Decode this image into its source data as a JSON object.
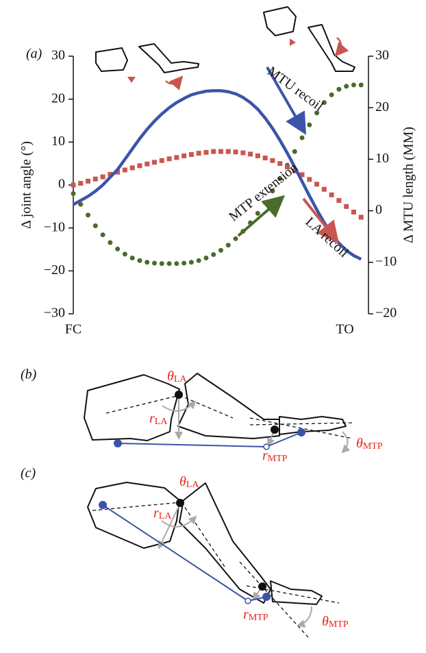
{
  "chart_data": {
    "type": "line",
    "panel": "(a)",
    "y_label": "Δ joint angle (°)",
    "y2_label": "Δ MTU length (MM)",
    "x": [
      0,
      2.5,
      5,
      7.5,
      10,
      12.5,
      15,
      17.5,
      20,
      22.5,
      25,
      27.5,
      30,
      32.5,
      35,
      37.5,
      40,
      42.5,
      45,
      47.5,
      50,
      52.5,
      55,
      57.5,
      60,
      62.5,
      65,
      67.5,
      70,
      72.5,
      75,
      77.5,
      80,
      82.5,
      85,
      87.5,
      90,
      92.5,
      95,
      97.5
    ],
    "xlim": [
      0,
      100
    ],
    "xticks": [
      {
        "value": 0,
        "label": "FC"
      },
      {
        "value": 92,
        "label": "TO"
      }
    ],
    "ylim": [
      -30,
      30
    ],
    "yticks": [
      {
        "value": -30,
        "label": "−30"
      },
      {
        "value": -20,
        "label": "−20"
      },
      {
        "value": -10,
        "label": "−10"
      },
      0,
      10,
      20,
      30
    ],
    "y2lim": [
      -20,
      30
    ],
    "y2ticks": [
      {
        "value": -20,
        "label": "−20"
      },
      {
        "value": -10,
        "label": "−10"
      },
      0,
      10,
      20,
      30
    ],
    "series": [
      {
        "style": "line",
        "axis": "y2",
        "color": "#3a55a8",
        "values": [
          1.2,
          2.0,
          2.8,
          3.8,
          5.0,
          6.5,
          8.0,
          10.0,
          12.0,
          14.0,
          15.8,
          17.4,
          18.8,
          20.0,
          21.0,
          21.8,
          22.5,
          22.9,
          23.2,
          23.3,
          23.3,
          23.1,
          22.7,
          22.0,
          21.0,
          19.7,
          18.0,
          16.0,
          13.7,
          11.2,
          8.5,
          5.7,
          2.9,
          0.2,
          -2.3,
          -4.5,
          -6.3,
          -7.7,
          -8.7,
          -9.4
        ]
      },
      {
        "style": "square",
        "color": "#c9574f",
        "values": [
          0,
          0.4,
          0.9,
          1.4,
          1.9,
          2.5,
          3.0,
          3.5,
          4.0,
          4.5,
          4.9,
          5.3,
          5.7,
          6.1,
          6.4,
          6.8,
          7.1,
          7.4,
          7.6,
          7.8,
          7.8,
          7.8,
          7.7,
          7.5,
          7.2,
          6.8,
          6.3,
          5.7,
          5.0,
          4.2,
          3.3,
          2.4,
          1.3,
          0.2,
          -1.0,
          -2.3,
          -3.6,
          -5.0,
          -6.3,
          -7.5
        ]
      },
      {
        "style": "circle",
        "color": "#4a6b2a",
        "values": [
          -2,
          -4.5,
          -7,
          -9.5,
          -11.6,
          -13.4,
          -14.9,
          -16.1,
          -17,
          -17.6,
          -18,
          -18.2,
          -18.3,
          -18.3,
          -18.3,
          -18.2,
          -18,
          -17.6,
          -17,
          -16.2,
          -15.2,
          -14,
          -12.5,
          -10.8,
          -8.8,
          -6.6,
          -4.1,
          -1.4,
          1.5,
          4.6,
          7.8,
          11,
          14,
          16.8,
          19.2,
          21,
          22.3,
          23,
          23.3,
          23.3
        ]
      }
    ],
    "annotations": [
      {
        "text": "MTU recoil",
        "color": "#3a55a8"
      },
      {
        "text": "MTP extension",
        "color": "#4a6b2a"
      },
      {
        "text": "LA recoil",
        "color": "#c9574f"
      }
    ]
  },
  "diagrams": [
    {
      "panel": "(b)",
      "theta_la": {
        "symbol": "θ",
        "sub": "LA"
      },
      "r_la": {
        "symbol": "r",
        "sub": "LA"
      },
      "r_mtp": {
        "symbol": "r",
        "sub": "MTP"
      },
      "theta_mtp": {
        "symbol": "θ",
        "sub": "MTP"
      }
    },
    {
      "panel": "(c)",
      "theta_la": {
        "symbol": "θ",
        "sub": "LA"
      },
      "r_la": {
        "symbol": "r",
        "sub": "LA"
      },
      "r_mtp": {
        "symbol": "r",
        "sub": "MTP"
      },
      "theta_mtp": {
        "symbol": "θ",
        "sub": "MTP"
      }
    }
  ]
}
